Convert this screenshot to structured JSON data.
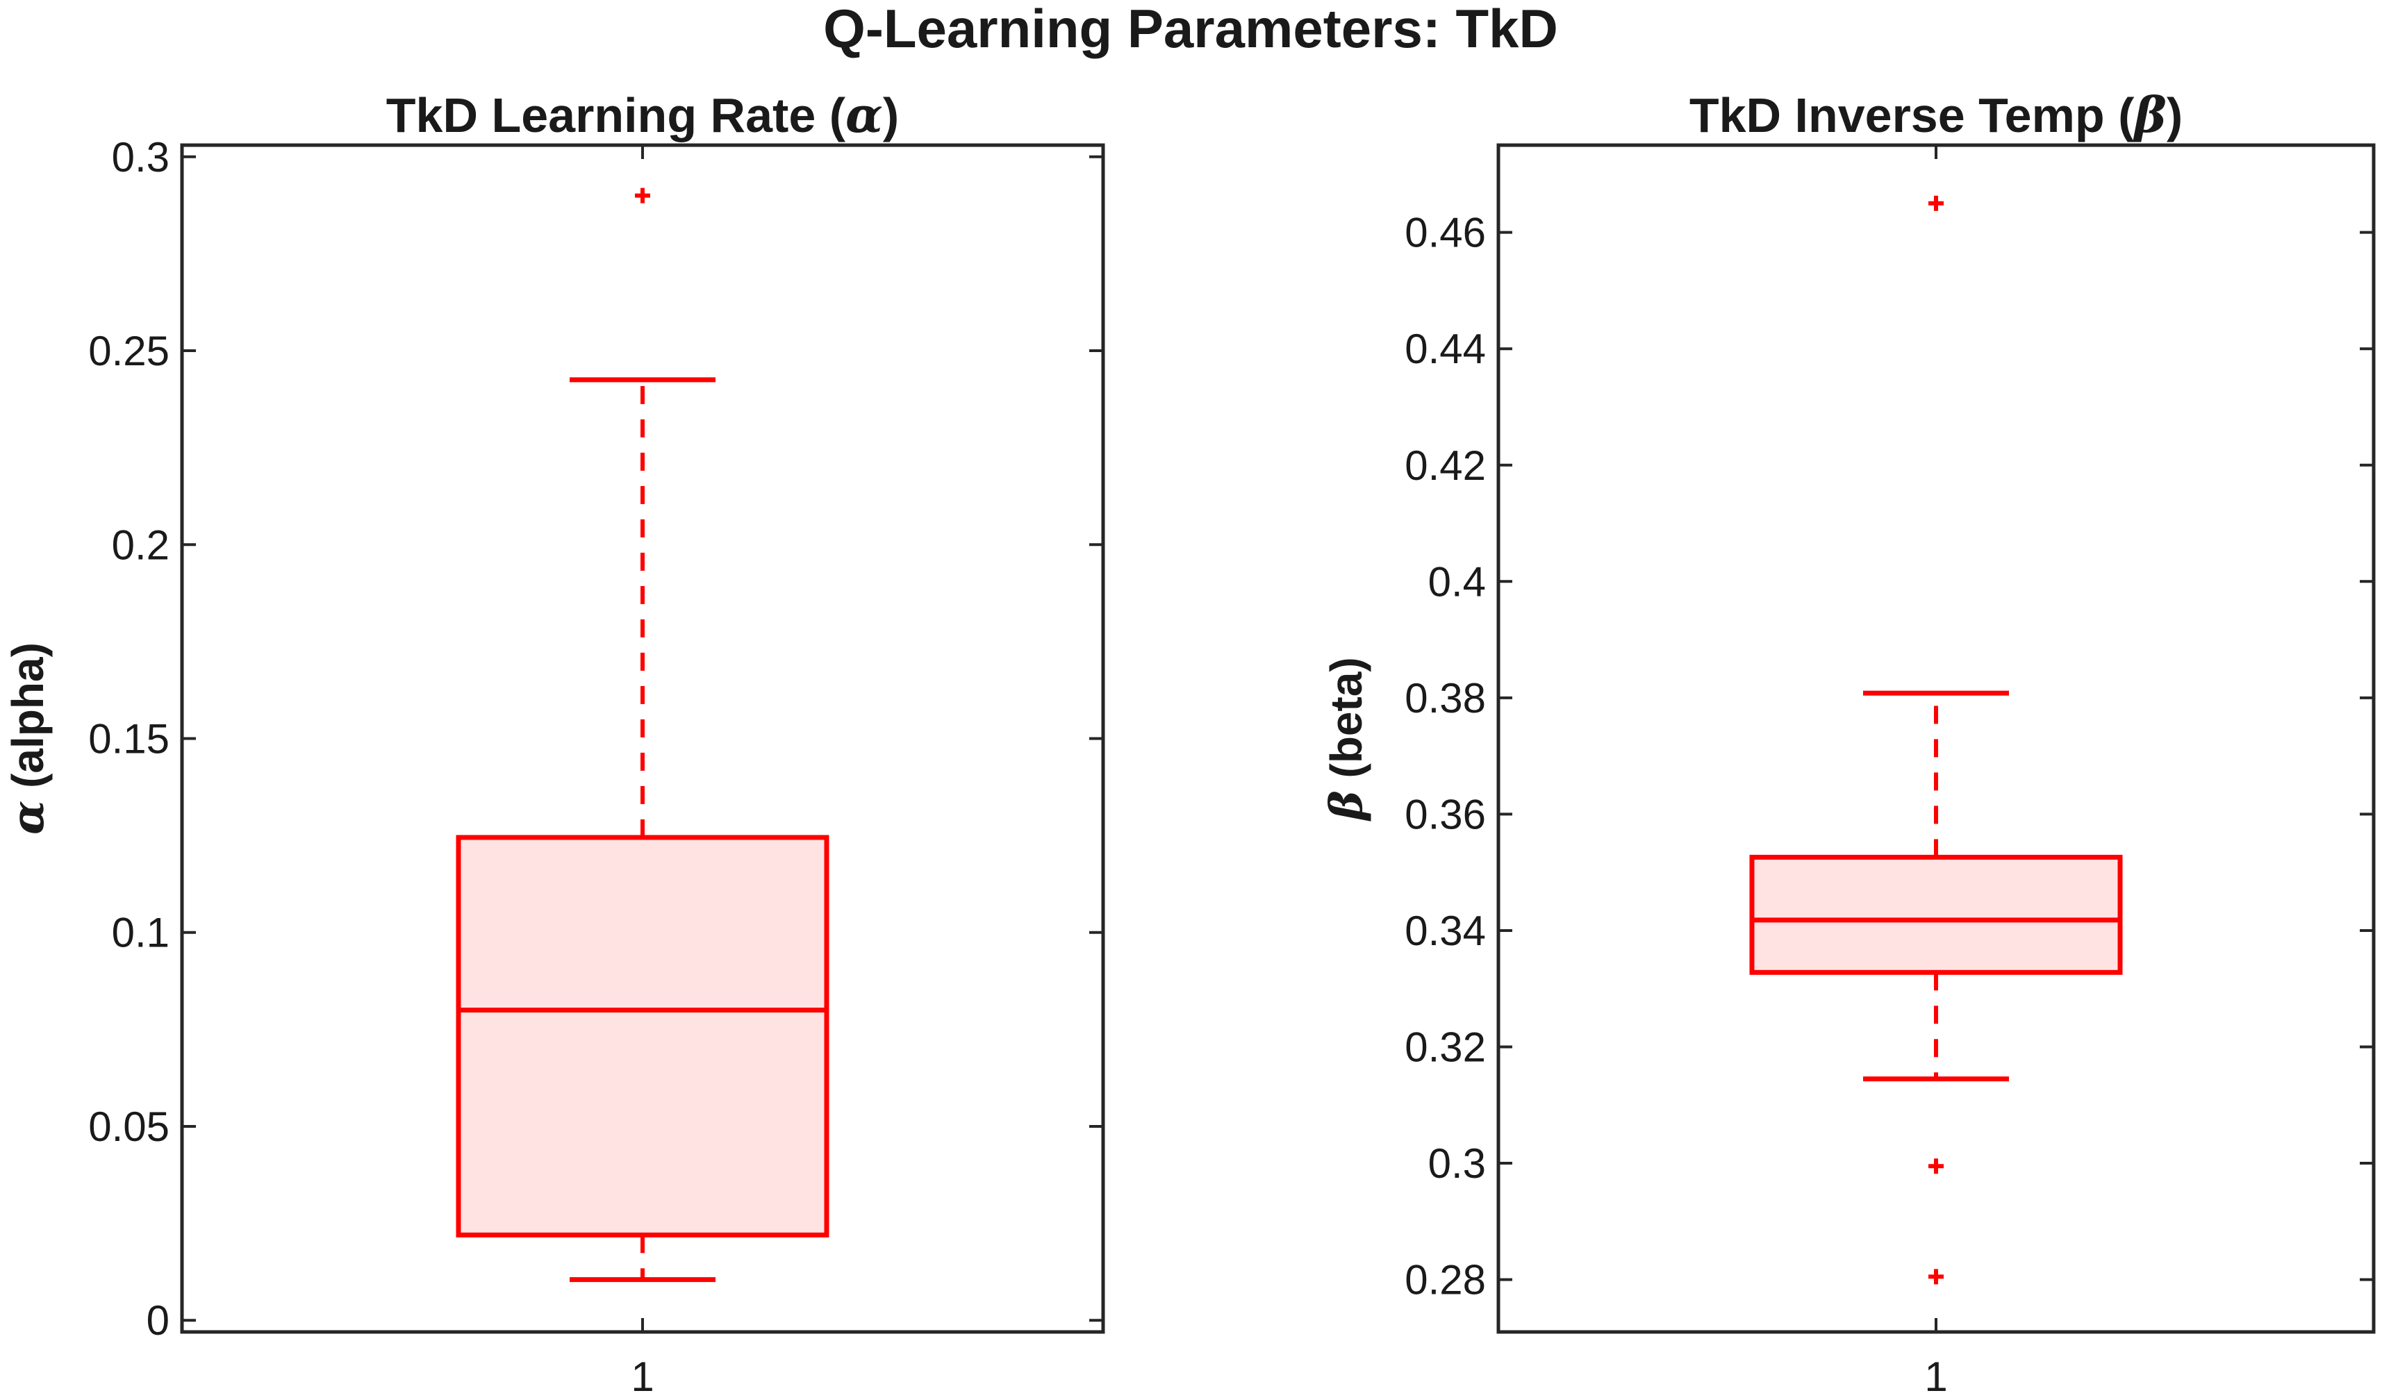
{
  "figure": {
    "title": "Q-Learning Parameters: TkD"
  },
  "colors": {
    "box_edge": "#ff0000",
    "box_fill": "#ffe3e3",
    "axes": "#262626"
  },
  "chart_data": [
    {
      "type": "box",
      "title_prefix": "TkD Learning Rate (",
      "title_symbol": "α",
      "title_suffix": ")",
      "ylabel_symbol": "α",
      "ylabel_text": " (alpha)",
      "categories": [
        "1"
      ],
      "ylim": [
        -0.003,
        0.303
      ],
      "yticks": [
        0,
        0.05,
        0.1,
        0.15,
        0.2,
        0.25,
        0.3
      ],
      "ytick_labels": [
        "0",
        "0.05",
        "0.1",
        "0.15",
        "0.2",
        "0.25",
        "0.3"
      ],
      "box": {
        "whisker_low": 0.0105,
        "q1": 0.022,
        "median": 0.08,
        "q3": 0.1245,
        "whisker_high": 0.2425,
        "outliers": [
          0.29
        ]
      },
      "grid": false,
      "legend": false
    },
    {
      "type": "box",
      "title_prefix": "TkD Inverse Temp (",
      "title_symbol": "β",
      "title_suffix": ")",
      "ylabel_symbol": "β",
      "ylabel_text": " (beta)",
      "categories": [
        "1"
      ],
      "ylim": [
        0.271,
        0.475
      ],
      "yticks": [
        0.28,
        0.3,
        0.32,
        0.34,
        0.36,
        0.38,
        0.4,
        0.42,
        0.44,
        0.46
      ],
      "ytick_labels": [
        "0.28",
        "0.3",
        "0.32",
        "0.34",
        "0.36",
        "0.38",
        "0.4",
        "0.42",
        "0.44",
        "0.46"
      ],
      "box": {
        "whisker_low": 0.3145,
        "q1": 0.3328,
        "median": 0.3418,
        "q3": 0.3526,
        "whisker_high": 0.3808,
        "outliers": [
          0.2995,
          0.2805,
          0.465
        ]
      },
      "grid": false,
      "legend": false
    }
  ]
}
